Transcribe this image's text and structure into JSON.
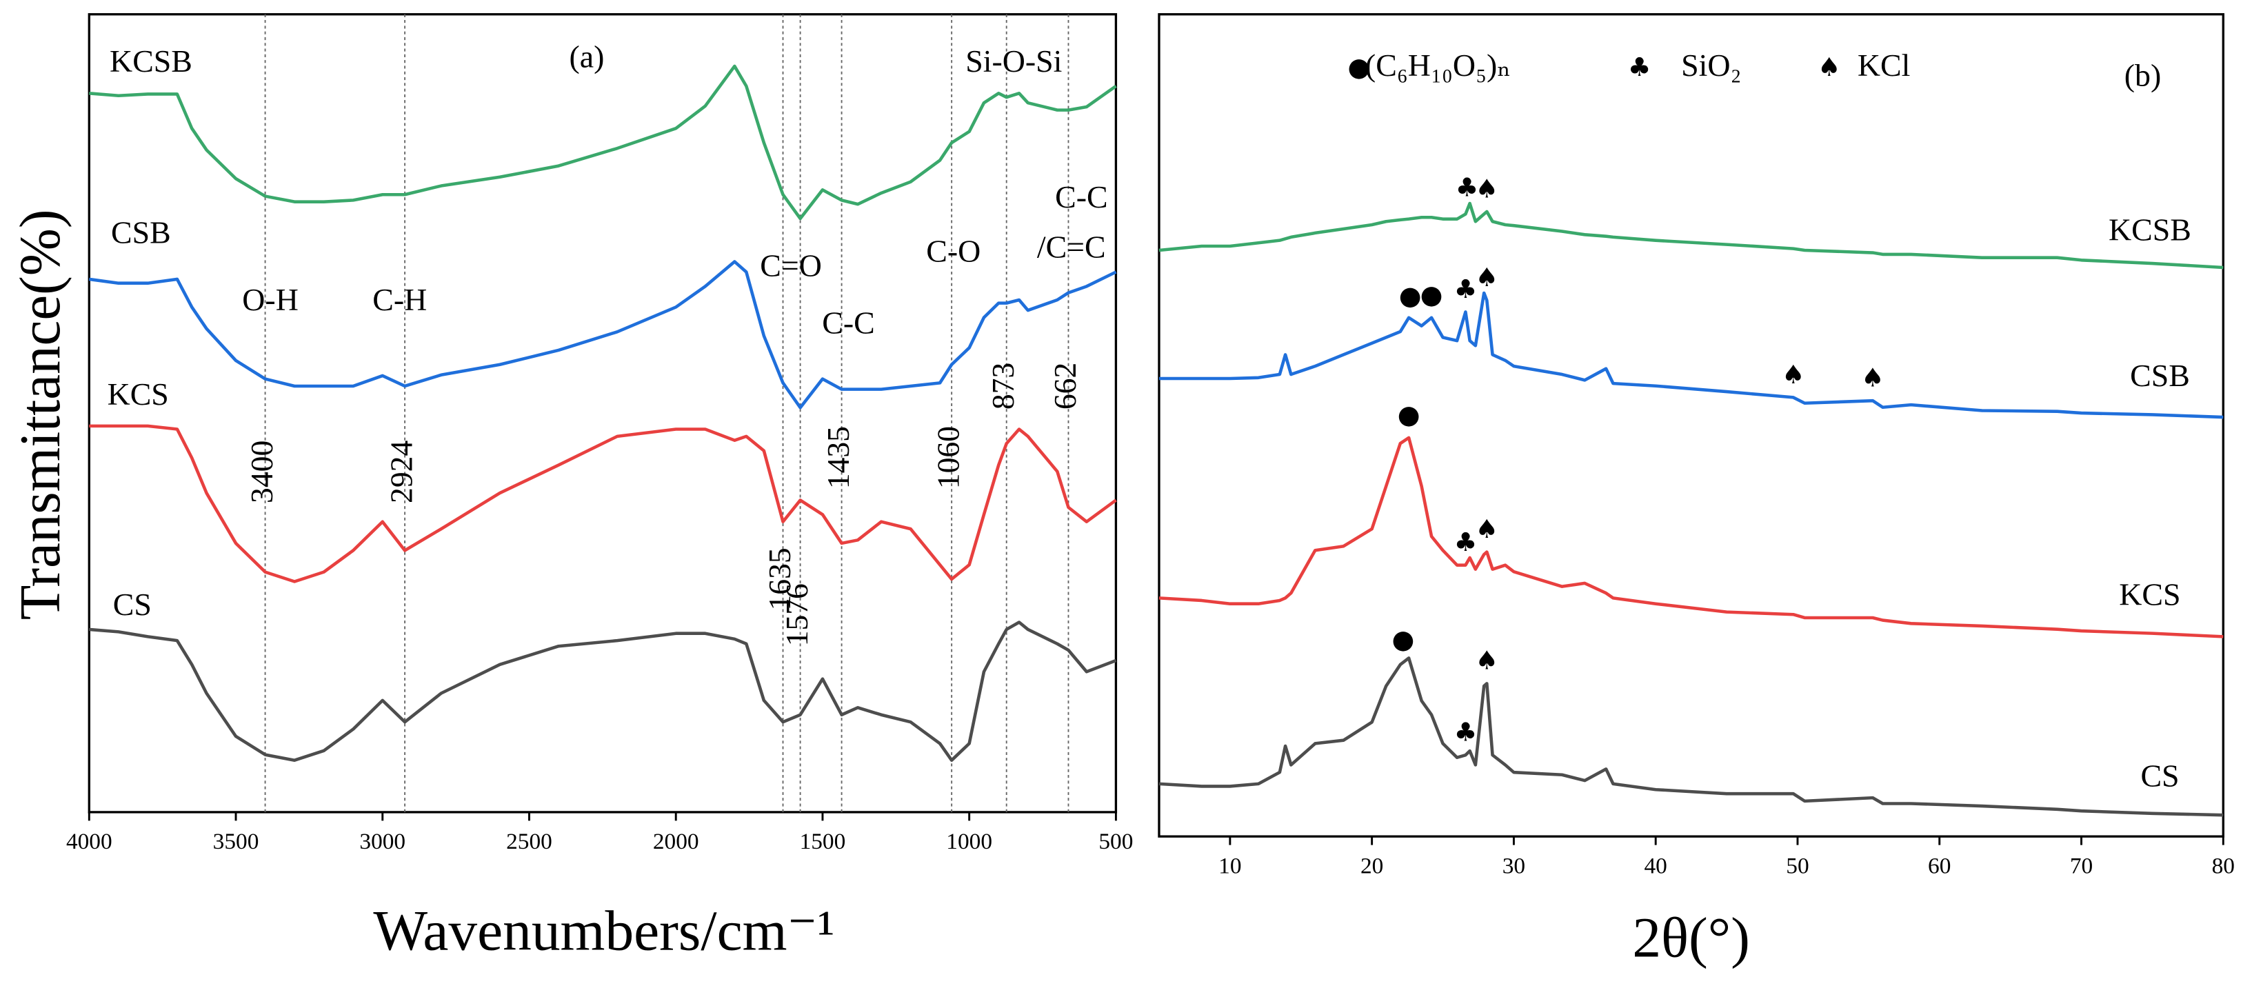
{
  "chart_data": [
    {
      "type": "line",
      "label": "(a)",
      "xlabel": "Wavenumbers/cm⁻¹",
      "ylabel": "Transmittance(%)",
      "xlim": [
        4000,
        500
      ],
      "ylim": [
        0,
        100
      ],
      "xticks": [
        4000,
        3500,
        3000,
        2500,
        2000,
        1500,
        1000,
        500
      ],
      "x": [
        4000,
        3900,
        3800,
        3700,
        3650,
        3600,
        3500,
        3400,
        3300,
        3200,
        3100,
        3000,
        2924,
        2800,
        2600,
        2400,
        2200,
        2000,
        1900,
        1800,
        1760,
        1700,
        1635,
        1576,
        1500,
        1435,
        1380,
        1300,
        1200,
        1100,
        1060,
        1000,
        950,
        900,
        873,
        830,
        800,
        700,
        662,
        600,
        500
      ],
      "series": [
        {
          "name": "KCSB",
          "color": "#3aa86b",
          "values": [
            90.1,
            89.8,
            90.0,
            90.0,
            85.7,
            83.0,
            79.4,
            77.2,
            76.5,
            76.5,
            76.7,
            77.4,
            77.4,
            78.5,
            79.6,
            81.0,
            83.2,
            85.7,
            88.5,
            93.5,
            91.0,
            83.9,
            77.4,
            74.4,
            78.0,
            76.7,
            76.2,
            77.6,
            79.0,
            81.7,
            83.9,
            85.3,
            88.9,
            90.1,
            89.6,
            90.1,
            88.9,
            88.0,
            88.0,
            88.4,
            91.0
          ]
        },
        {
          "name": "CSB",
          "color": "#1f6fdb",
          "values": [
            66.8,
            66.3,
            66.3,
            66.8,
            63.3,
            60.6,
            56.6,
            54.3,
            53.4,
            53.4,
            53.4,
            54.7,
            53.4,
            54.8,
            56.1,
            57.9,
            60.2,
            63.3,
            65.9,
            69.0,
            67.7,
            59.7,
            53.8,
            50.7,
            54.3,
            53.0,
            53.0,
            53.0,
            53.4,
            53.8,
            56.1,
            58.2,
            62.0,
            63.8,
            63.8,
            64.2,
            62.9,
            64.2,
            65.1,
            65.9,
            67.7
          ]
        },
        {
          "name": "KCS",
          "color": "#e8403f",
          "values": [
            48.4,
            48.4,
            48.4,
            48.0,
            44.4,
            40.0,
            33.7,
            30.1,
            28.9,
            30.1,
            32.8,
            36.4,
            32.8,
            35.5,
            40.0,
            43.5,
            47.1,
            48.0,
            48.0,
            46.6,
            47.1,
            45.3,
            36.4,
            39.1,
            37.3,
            33.7,
            34.1,
            36.4,
            35.5,
            31.0,
            29.2,
            31.0,
            37.3,
            43.5,
            46.2,
            48.0,
            47.1,
            42.7,
            38.2,
            36.4,
            39.1
          ]
        },
        {
          "name": "CS",
          "color": "#4d4d4d",
          "values": [
            22.9,
            22.6,
            22.0,
            21.5,
            18.5,
            14.9,
            9.5,
            7.2,
            6.5,
            7.7,
            10.4,
            14.0,
            11.3,
            14.9,
            18.5,
            20.8,
            21.5,
            22.4,
            22.4,
            21.7,
            21.1,
            14.0,
            11.3,
            12.2,
            16.7,
            12.2,
            13.1,
            12.2,
            11.3,
            8.6,
            6.5,
            8.6,
            17.6,
            21.1,
            22.9,
            23.8,
            22.9,
            21.1,
            20.3,
            17.6,
            19.0
          ]
        }
      ],
      "reference_lines": [
        3400,
        2924,
        1635,
        1576,
        1435,
        1060,
        873,
        662
      ],
      "annotations": [
        "O-H",
        "C-H",
        "C=O",
        "C-C",
        "C-O",
        "Si-O-Si",
        "C-C",
        "/C=C"
      ]
    },
    {
      "type": "line",
      "label": "(b)",
      "xlabel": "2θ(°)",
      "xlim": [
        5,
        80
      ],
      "ylim": [
        0,
        100
      ],
      "xticks": [
        10,
        20,
        30,
        40,
        50,
        60,
        70,
        80
      ],
      "x": [
        5,
        8,
        10,
        12,
        13.5,
        13.9,
        14.3,
        16,
        18,
        20,
        21,
        22,
        22.6,
        23.5,
        24.2,
        25,
        26,
        26.6,
        26.9,
        27.3,
        27.9,
        28.1,
        28.5,
        29.4,
        30,
        33.4,
        35,
        36.5,
        37,
        40,
        45,
        49.7,
        50.5,
        55.3,
        56,
        58,
        63,
        68.3,
        70,
        75,
        80
      ],
      "series": [
        {
          "name": "KCSB",
          "color": "#3aa86b",
          "values": [
            71.3,
            71.8,
            71.8,
            72.2,
            72.5,
            72.7,
            72.9,
            73.4,
            73.9,
            74.4,
            74.8,
            75.0,
            75.1,
            75.3,
            75.3,
            75.1,
            75.1,
            75.7,
            77.0,
            74.8,
            75.7,
            76.0,
            74.8,
            74.4,
            74.3,
            73.6,
            73.2,
            73.0,
            72.9,
            72.5,
            72.0,
            71.5,
            71.3,
            71.0,
            70.8,
            70.8,
            70.4,
            70.4,
            70.1,
            69.7,
            69.2
          ],
          "peaks": [
            {
              "symbol": "♣",
              "x": 26.7
            },
            {
              "symbol": "♠",
              "x": 28.1
            }
          ]
        },
        {
          "name": "CSB",
          "color": "#1f6fdb",
          "values": [
            55.7,
            55.7,
            55.7,
            55.8,
            56.2,
            58.6,
            56.2,
            57.2,
            58.6,
            60.0,
            60.7,
            61.4,
            63.1,
            62.1,
            63.1,
            60.7,
            60.3,
            63.8,
            60.3,
            59.7,
            66.1,
            65.2,
            58.6,
            57.9,
            57.2,
            56.2,
            55.5,
            56.9,
            55.1,
            54.8,
            54.1,
            53.4,
            52.7,
            53.0,
            52.2,
            52.5,
            51.8,
            51.7,
            51.5,
            51.3,
            51.0
          ],
          "peaks": [
            {
              "symbol": "●",
              "x": 22.7
            },
            {
              "symbol": "●",
              "x": 24.2
            },
            {
              "symbol": "♣",
              "x": 26.6
            },
            {
              "symbol": "♠",
              "x": 28.1
            },
            {
              "symbol": "♠",
              "x": 49.7
            },
            {
              "symbol": "♠",
              "x": 55.3
            }
          ]
        },
        {
          "name": "KCS",
          "color": "#e8403f",
          "values": [
            29.0,
            28.7,
            28.3,
            28.3,
            28.7,
            29.0,
            29.6,
            34.8,
            35.3,
            37.4,
            42.6,
            47.8,
            48.5,
            42.6,
            36.5,
            34.8,
            33.0,
            33.0,
            33.9,
            32.5,
            34.3,
            34.6,
            32.5,
            33.0,
            32.2,
            30.4,
            30.8,
            29.6,
            29.0,
            28.3,
            27.3,
            27.0,
            26.6,
            26.6,
            26.3,
            25.9,
            25.6,
            25.2,
            25.0,
            24.7,
            24.3
          ],
          "peaks": [
            {
              "symbol": "●",
              "x": 22.6
            },
            {
              "symbol": "♣",
              "x": 26.6
            },
            {
              "symbol": "♠",
              "x": 28.1
            }
          ]
        },
        {
          "name": "CS",
          "color": "#4d4d4d",
          "values": [
            6.4,
            6.1,
            6.1,
            6.4,
            7.8,
            11.0,
            8.7,
            11.3,
            11.7,
            13.9,
            18.3,
            20.9,
            21.7,
            16.5,
            14.8,
            11.3,
            9.6,
            9.9,
            10.4,
            8.7,
            18.3,
            18.6,
            9.9,
            8.7,
            7.8,
            7.5,
            6.8,
            8.2,
            6.4,
            5.7,
            5.2,
            5.2,
            4.3,
            4.7,
            4.0,
            4.0,
            3.7,
            3.3,
            3.1,
            2.8,
            2.6
          ],
          "peaks": [
            {
              "symbol": "●",
              "x": 22.2
            },
            {
              "symbol": "♣",
              "x": 26.6
            },
            {
              "symbol": "♠",
              "x": 28.1
            }
          ]
        }
      ],
      "legend": [
        {
          "symbol": "●",
          "label": "(C₆H₁₀O₅)ₙ"
        },
        {
          "symbol": "♣",
          "label": "SiO₂"
        },
        {
          "symbol": "♠",
          "label": "KCl"
        }
      ]
    }
  ]
}
